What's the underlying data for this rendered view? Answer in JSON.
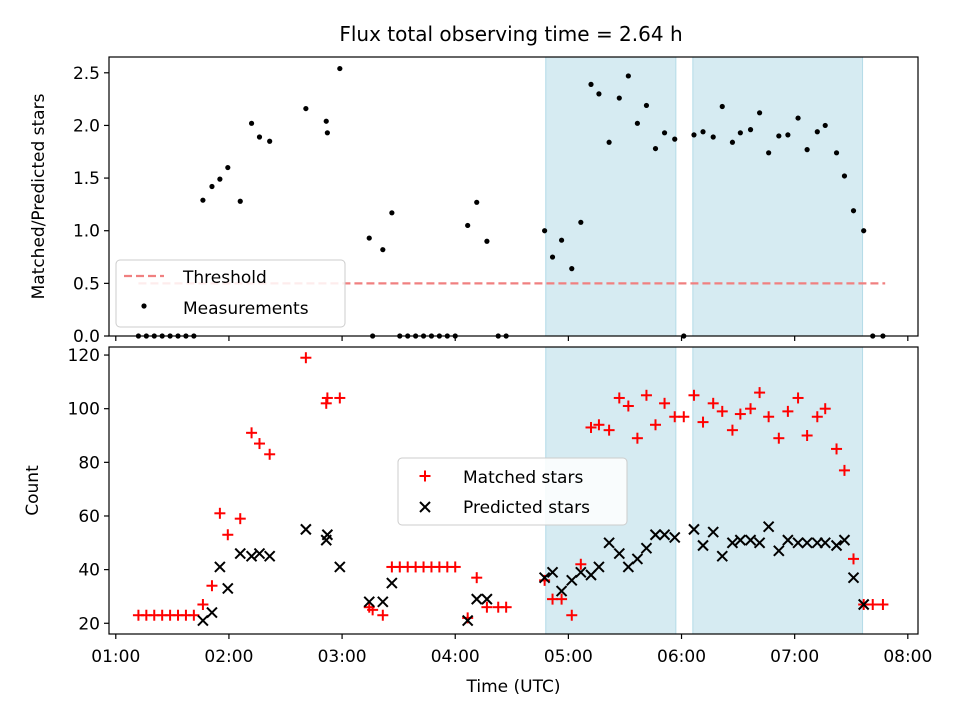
{
  "chart_data": [
    {
      "type": "scatter",
      "title": "Flux total observing time = 2.64 h",
      "xlabel": "",
      "ylabel": "Matched/Predicted stars",
      "ylim": [
        0,
        2.65
      ],
      "xlim": [
        0.94,
        8.09
      ],
      "x_ticks": [
        1,
        2,
        3,
        4,
        5,
        6,
        7,
        8
      ],
      "y_ticks": [
        0.0,
        0.5,
        1.0,
        1.5,
        2.0,
        2.5
      ],
      "y_tick_labels": [
        "0.0",
        "0.5",
        "1.0",
        "1.5",
        "2.0",
        "2.5"
      ],
      "grid": false,
      "legend": {
        "position": "lower-left",
        "entries": [
          "Threshold",
          "Measurements"
        ]
      },
      "threshold": {
        "name": "Threshold",
        "value": 0.5,
        "x_range": [
          1.2,
          7.8
        ],
        "color": "#f08080"
      },
      "shaded_regions": [
        [
          4.8,
          5.95
        ],
        [
          6.1,
          7.6
        ]
      ],
      "series": [
        {
          "name": "Measurements",
          "color": "#000000",
          "points": [
            [
              1.2,
              0
            ],
            [
              1.27,
              0
            ],
            [
              1.34,
              0
            ],
            [
              1.41,
              0
            ],
            [
              1.48,
              0
            ],
            [
              1.55,
              0
            ],
            [
              1.62,
              0
            ],
            [
              1.69,
              0
            ],
            [
              1.77,
              1.29
            ],
            [
              1.85,
              1.42
            ],
            [
              1.92,
              1.49
            ],
            [
              1.99,
              1.6
            ],
            [
              2.1,
              1.28
            ],
            [
              2.2,
              2.02
            ],
            [
              2.27,
              1.89
            ],
            [
              2.36,
              1.85
            ],
            [
              2.68,
              2.16
            ],
            [
              2.86,
              2.04
            ],
            [
              2.87,
              1.93
            ],
            [
              2.98,
              2.54
            ],
            [
              3.24,
              0.93
            ],
            [
              3.27,
              0
            ],
            [
              3.36,
              0.82
            ],
            [
              3.44,
              1.17
            ],
            [
              3.51,
              0
            ],
            [
              3.58,
              0
            ],
            [
              3.65,
              0
            ],
            [
              3.72,
              0
            ],
            [
              3.79,
              0
            ],
            [
              3.86,
              0
            ],
            [
              3.93,
              0
            ],
            [
              4.0,
              0
            ],
            [
              4.11,
              1.05
            ],
            [
              4.19,
              1.27
            ],
            [
              4.28,
              0.9
            ],
            [
              4.38,
              0
            ],
            [
              4.45,
              0
            ],
            [
              4.79,
              1.0
            ],
            [
              4.86,
              0.75
            ],
            [
              4.94,
              0.91
            ],
            [
              5.03,
              0.64
            ],
            [
              5.11,
              1.08
            ],
            [
              5.2,
              2.39
            ],
            [
              5.27,
              2.3
            ],
            [
              5.36,
              1.84
            ],
            [
              5.45,
              2.26
            ],
            [
              5.53,
              2.47
            ],
            [
              5.61,
              2.02
            ],
            [
              5.69,
              2.19
            ],
            [
              5.77,
              1.78
            ],
            [
              5.85,
              1.93
            ],
            [
              5.94,
              1.87
            ],
            [
              6.02,
              0
            ],
            [
              6.11,
              1.91
            ],
            [
              6.19,
              1.94
            ],
            [
              6.28,
              1.89
            ],
            [
              6.36,
              2.18
            ],
            [
              6.45,
              1.84
            ],
            [
              6.52,
              1.93
            ],
            [
              6.61,
              1.96
            ],
            [
              6.69,
              2.12
            ],
            [
              6.77,
              1.74
            ],
            [
              6.86,
              1.9
            ],
            [
              6.94,
              1.91
            ],
            [
              7.03,
              2.07
            ],
            [
              7.11,
              1.77
            ],
            [
              7.2,
              1.94
            ],
            [
              7.27,
              2.0
            ],
            [
              7.37,
              1.74
            ],
            [
              7.44,
              1.52
            ],
            [
              7.52,
              1.19
            ],
            [
              7.61,
              1.0
            ],
            [
              7.69,
              0
            ],
            [
              7.78,
              0
            ]
          ]
        }
      ]
    },
    {
      "type": "scatter",
      "title": "",
      "xlabel": "Time (UTC)",
      "ylabel": "Count",
      "ylim": [
        16,
        123
      ],
      "xlim": [
        0.94,
        8.09
      ],
      "x_ticks": [
        1,
        2,
        3,
        4,
        5,
        6,
        7,
        8
      ],
      "x_tick_labels": [
        "01:00",
        "02:00",
        "03:00",
        "04:00",
        "05:00",
        "06:00",
        "07:00",
        "08:00"
      ],
      "y_ticks": [
        20,
        40,
        60,
        80,
        100,
        120
      ],
      "y_tick_labels": [
        "20",
        "40",
        "60",
        "80",
        "100",
        "120"
      ],
      "grid": false,
      "legend": {
        "position": "center",
        "entries": [
          "Matched stars",
          "Predicted stars"
        ]
      },
      "shaded_regions": [
        [
          4.8,
          5.95
        ],
        [
          6.1,
          7.6
        ]
      ],
      "series": [
        {
          "name": "Matched stars",
          "marker": "plus",
          "color": "#ff0000",
          "points": [
            [
              1.2,
              23
            ],
            [
              1.27,
              23
            ],
            [
              1.34,
              23
            ],
            [
              1.41,
              23
            ],
            [
              1.48,
              23
            ],
            [
              1.55,
              23
            ],
            [
              1.62,
              23
            ],
            [
              1.69,
              23
            ],
            [
              1.77,
              27
            ],
            [
              1.85,
              34
            ],
            [
              1.92,
              61
            ],
            [
              1.99,
              53
            ],
            [
              2.1,
              59
            ],
            [
              2.2,
              91
            ],
            [
              2.27,
              87
            ],
            [
              2.36,
              83
            ],
            [
              2.68,
              119
            ],
            [
              2.86,
              102
            ],
            [
              2.87,
              104
            ],
            [
              2.98,
              104
            ],
            [
              3.24,
              26
            ],
            [
              3.27,
              25
            ],
            [
              3.36,
              23
            ],
            [
              3.44,
              41
            ],
            [
              3.51,
              41
            ],
            [
              3.58,
              41
            ],
            [
              3.65,
              41
            ],
            [
              3.72,
              41
            ],
            [
              3.79,
              41
            ],
            [
              3.86,
              41
            ],
            [
              3.93,
              41
            ],
            [
              4.0,
              41
            ],
            [
              4.11,
              22
            ],
            [
              4.19,
              37
            ],
            [
              4.28,
              26
            ],
            [
              4.38,
              26
            ],
            [
              4.45,
              26
            ],
            [
              4.79,
              36
            ],
            [
              4.86,
              29
            ],
            [
              4.94,
              29
            ],
            [
              5.03,
              23
            ],
            [
              5.11,
              42
            ],
            [
              5.2,
              93
            ],
            [
              5.27,
              94
            ],
            [
              5.36,
              92
            ],
            [
              5.45,
              104
            ],
            [
              5.53,
              101
            ],
            [
              5.61,
              89
            ],
            [
              5.69,
              105
            ],
            [
              5.77,
              94
            ],
            [
              5.85,
              102
            ],
            [
              5.94,
              97
            ],
            [
              6.02,
              97
            ],
            [
              6.11,
              105
            ],
            [
              6.19,
              95
            ],
            [
              6.28,
              102
            ],
            [
              6.36,
              99
            ],
            [
              6.45,
              92
            ],
            [
              6.52,
              98
            ],
            [
              6.61,
              100
            ],
            [
              6.69,
              106
            ],
            [
              6.77,
              97
            ],
            [
              6.86,
              89
            ],
            [
              6.94,
              99
            ],
            [
              7.03,
              104
            ],
            [
              7.11,
              90
            ],
            [
              7.2,
              97
            ],
            [
              7.27,
              100
            ],
            [
              7.37,
              85
            ],
            [
              7.44,
              77
            ],
            [
              7.52,
              44
            ],
            [
              7.61,
              27
            ],
            [
              7.69,
              27
            ],
            [
              7.78,
              27
            ]
          ]
        },
        {
          "name": "Predicted stars",
          "marker": "x",
          "color": "#000000",
          "points": [
            [
              1.77,
              21
            ],
            [
              1.85,
              24
            ],
            [
              1.92,
              41
            ],
            [
              1.99,
              33
            ],
            [
              2.1,
              46
            ],
            [
              2.2,
              45
            ],
            [
              2.27,
              46
            ],
            [
              2.36,
              45
            ],
            [
              2.68,
              55
            ],
            [
              2.86,
              51
            ],
            [
              2.87,
              53
            ],
            [
              2.98,
              41
            ],
            [
              3.24,
              28
            ],
            [
              3.36,
              28
            ],
            [
              3.44,
              35
            ],
            [
              4.11,
              21
            ],
            [
              4.19,
              29
            ],
            [
              4.28,
              29
            ],
            [
              4.79,
              37
            ],
            [
              4.86,
              39
            ],
            [
              4.94,
              32
            ],
            [
              5.03,
              36
            ],
            [
              5.11,
              39
            ],
            [
              5.2,
              38
            ],
            [
              5.27,
              41
            ],
            [
              5.36,
              50
            ],
            [
              5.45,
              46
            ],
            [
              5.53,
              41
            ],
            [
              5.61,
              44
            ],
            [
              5.69,
              48
            ],
            [
              5.77,
              53
            ],
            [
              5.85,
              53
            ],
            [
              5.94,
              52
            ],
            [
              6.11,
              55
            ],
            [
              6.19,
              49
            ],
            [
              6.28,
              54
            ],
            [
              6.36,
              45
            ],
            [
              6.45,
              50
            ],
            [
              6.52,
              51
            ],
            [
              6.61,
              51
            ],
            [
              6.69,
              50
            ],
            [
              6.77,
              56
            ],
            [
              6.86,
              47
            ],
            [
              6.94,
              51
            ],
            [
              7.03,
              50
            ],
            [
              7.11,
              50
            ],
            [
              7.2,
              50
            ],
            [
              7.27,
              50
            ],
            [
              7.37,
              49
            ],
            [
              7.44,
              51
            ],
            [
              7.52,
              37
            ],
            [
              7.61,
              27
            ]
          ]
        }
      ]
    }
  ]
}
